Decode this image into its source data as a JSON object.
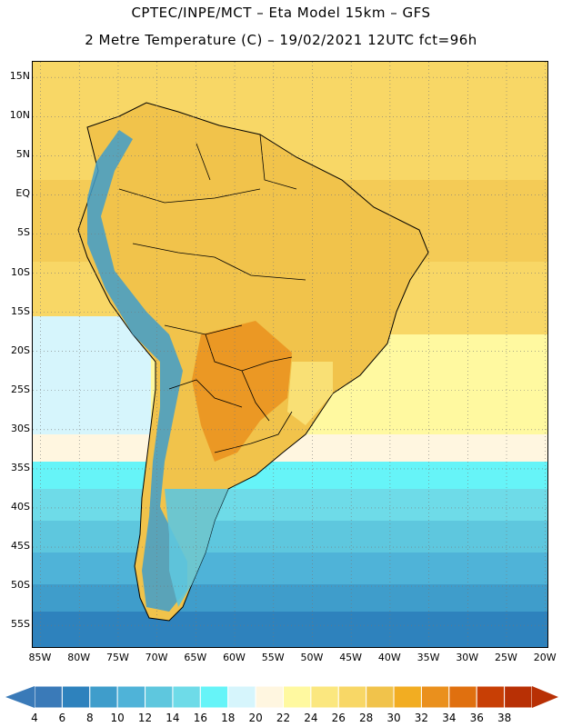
{
  "title": {
    "line1": "CPTEC/INPE/MCT –  Eta Model 15km – GFS",
    "line2": "2 Metre Temperature (C) – 19/02/2021 12UTC fct=96h"
  },
  "map": {
    "lat_labels": [
      "15N",
      "10N",
      "5N",
      "EQ",
      "5S",
      "10S",
      "15S",
      "20S",
      "25S",
      "30S",
      "35S",
      "40S",
      "45S",
      "50S",
      "55S"
    ],
    "lon_labels": [
      "85W",
      "80W",
      "75W",
      "70W",
      "65W",
      "60W",
      "55W",
      "50W",
      "45W",
      "40W",
      "35W",
      "30W",
      "25W",
      "20W"
    ],
    "lat_range": [
      17,
      -58
    ],
    "lon_range": [
      -86,
      -19.5
    ],
    "grid": "dotted",
    "icons": [
      "continent-outline",
      "country-borders"
    ]
  },
  "colorbar": {
    "labels": [
      "4",
      "6",
      "8",
      "10",
      "12",
      "14",
      "16",
      "18",
      "20",
      "22",
      "24",
      "26",
      "28",
      "30",
      "32",
      "34",
      "36",
      "38"
    ],
    "colors": [
      "#3a7ab8",
      "#2e82bd",
      "#3f9dcb",
      "#4fb3d8",
      "#5ec7de",
      "#6edbe8",
      "#66f4f8",
      "#d6f5fc",
      "#fff6e0",
      "#fff9a0",
      "#fbe77f",
      "#f8d766",
      "#f1c34b",
      "#f2ad22",
      "#ea901d",
      "#e0700f",
      "#c83f05",
      "#b83005"
    ],
    "ends": {
      "low": "#3a7ab8",
      "high": "#b83005"
    }
  }
}
